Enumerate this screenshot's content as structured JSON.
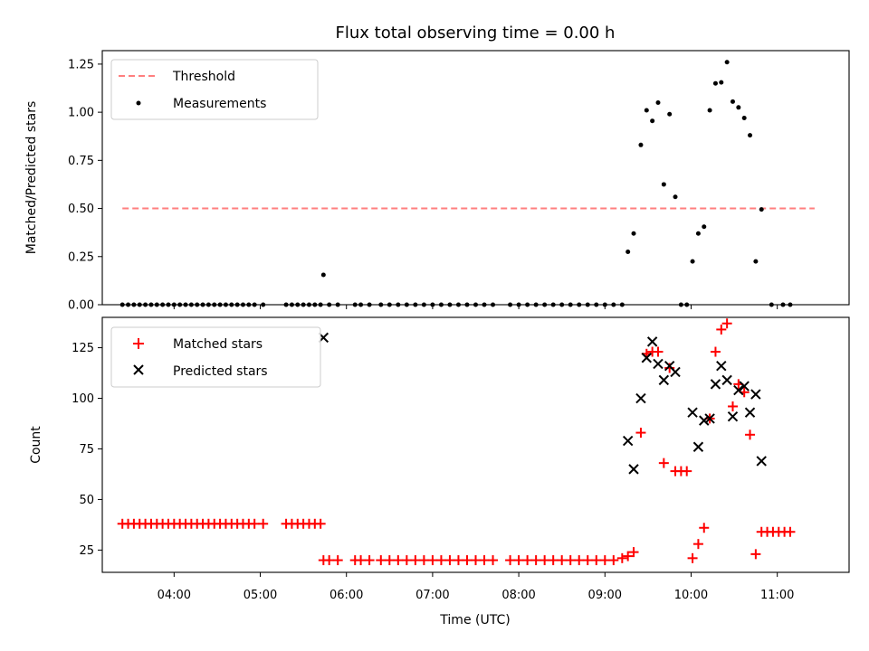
{
  "figure": {
    "title": "Flux total observing time = 0.00 h"
  },
  "chart_data": [
    {
      "type": "scatter",
      "xlabel": "",
      "ylabel": "Matched/Predicted stars",
      "xlim": [
        "03:10",
        "11:50"
      ],
      "ylim": [
        0,
        1.32
      ],
      "yticks": [
        0.0,
        0.25,
        0.5,
        0.75,
        1.0,
        1.25
      ],
      "ytick_labels": [
        "0.00",
        "0.25",
        "0.50",
        "0.75",
        "1.00",
        "1.25"
      ],
      "legend_position": "upper-left",
      "threshold": {
        "name": "Threshold",
        "value": 0.5,
        "x_range": [
          "03:24",
          "11:26"
        ],
        "color": "#ff7f7f",
        "style": "dashed"
      },
      "series": [
        {
          "name": "Measurements",
          "color": "#000000",
          "marker": "dot",
          "points": [
            [
              "03:24",
              0
            ],
            [
              "03:28",
              0
            ],
            [
              "03:32",
              0
            ],
            [
              "03:36",
              0
            ],
            [
              "03:40",
              0
            ],
            [
              "03:44",
              0
            ],
            [
              "03:48",
              0
            ],
            [
              "03:52",
              0
            ],
            [
              "03:56",
              0
            ],
            [
              "04:00",
              0
            ],
            [
              "04:04",
              0
            ],
            [
              "04:08",
              0
            ],
            [
              "04:12",
              0
            ],
            [
              "04:16",
              0
            ],
            [
              "04:20",
              0
            ],
            [
              "04:24",
              0
            ],
            [
              "04:28",
              0
            ],
            [
              "04:32",
              0
            ],
            [
              "04:36",
              0
            ],
            [
              "04:40",
              0
            ],
            [
              "04:44",
              0
            ],
            [
              "04:48",
              0
            ],
            [
              "04:52",
              0
            ],
            [
              "04:56",
              0
            ],
            [
              "05:02",
              0
            ],
            [
              "05:18",
              0
            ],
            [
              "05:22",
              0
            ],
            [
              "05:26",
              0
            ],
            [
              "05:30",
              0
            ],
            [
              "05:34",
              0
            ],
            [
              "05:38",
              0
            ],
            [
              "05:42",
              0
            ],
            [
              "05:44",
              0.155
            ],
            [
              "05:48",
              0
            ],
            [
              "05:54",
              0
            ],
            [
              "06:06",
              0
            ],
            [
              "06:10",
              0
            ],
            [
              "06:16",
              0
            ],
            [
              "06:24",
              0
            ],
            [
              "06:30",
              0
            ],
            [
              "06:36",
              0
            ],
            [
              "06:42",
              0
            ],
            [
              "06:48",
              0
            ],
            [
              "06:54",
              0
            ],
            [
              "07:00",
              0
            ],
            [
              "07:06",
              0
            ],
            [
              "07:12",
              0
            ],
            [
              "07:18",
              0
            ],
            [
              "07:24",
              0
            ],
            [
              "07:30",
              0
            ],
            [
              "07:36",
              0
            ],
            [
              "07:42",
              0
            ],
            [
              "07:54",
              0
            ],
            [
              "08:00",
              0
            ],
            [
              "08:06",
              0
            ],
            [
              "08:12",
              0
            ],
            [
              "08:18",
              0
            ],
            [
              "08:24",
              0
            ],
            [
              "08:30",
              0
            ],
            [
              "08:36",
              0
            ],
            [
              "08:42",
              0
            ],
            [
              "08:48",
              0
            ],
            [
              "08:54",
              0
            ],
            [
              "09:00",
              0
            ],
            [
              "09:06",
              0
            ],
            [
              "09:12",
              0
            ],
            [
              "09:16",
              0.275
            ],
            [
              "09:20",
              0.37
            ],
            [
              "09:25",
              0.83
            ],
            [
              "09:29",
              1.01
            ],
            [
              "09:33",
              0.955
            ],
            [
              "09:37",
              1.05
            ],
            [
              "09:41",
              0.625
            ],
            [
              "09:45",
              0.99
            ],
            [
              "09:49",
              0.56
            ],
            [
              "09:53",
              0
            ],
            [
              "09:57",
              0
            ],
            [
              "10:01",
              0.225
            ],
            [
              "10:05",
              0.37
            ],
            [
              "10:09",
              0.405
            ],
            [
              "10:13",
              1.01
            ],
            [
              "10:17",
              1.15
            ],
            [
              "10:21",
              1.155
            ],
            [
              "10:25",
              1.26
            ],
            [
              "10:29",
              1.055
            ],
            [
              "10:33",
              1.025
            ],
            [
              "10:37",
              0.97
            ],
            [
              "10:41",
              0.88
            ],
            [
              "10:45",
              0.225
            ],
            [
              "10:49",
              0.495
            ],
            [
              "10:56",
              0
            ],
            [
              "11:04",
              0
            ],
            [
              "11:09",
              0
            ]
          ]
        }
      ]
    },
    {
      "type": "scatter",
      "xlabel": "Time (UTC)",
      "ylabel": "Count",
      "xlim": [
        "03:10",
        "11:50"
      ],
      "ylim": [
        14,
        140
      ],
      "yticks": [
        25,
        50,
        75,
        100,
        125
      ],
      "ytick_labels": [
        "25",
        "50",
        "75",
        "100",
        "125"
      ],
      "xticks": [
        "04:00",
        "05:00",
        "06:00",
        "07:00",
        "08:00",
        "09:00",
        "10:00",
        "11:00"
      ],
      "xtick_labels": [
        "04:00",
        "05:00",
        "06:00",
        "07:00",
        "08:00",
        "09:00",
        "10:00",
        "11:00"
      ],
      "legend_position": "upper-left",
      "series": [
        {
          "name": "Matched stars",
          "color": "#ff0000",
          "marker": "plus",
          "points": [
            [
              "03:24",
              38
            ],
            [
              "03:28",
              38
            ],
            [
              "03:32",
              38
            ],
            [
              "03:36",
              38
            ],
            [
              "03:40",
              38
            ],
            [
              "03:44",
              38
            ],
            [
              "03:48",
              38
            ],
            [
              "03:52",
              38
            ],
            [
              "03:56",
              38
            ],
            [
              "04:00",
              38
            ],
            [
              "04:04",
              38
            ],
            [
              "04:08",
              38
            ],
            [
              "04:12",
              38
            ],
            [
              "04:16",
              38
            ],
            [
              "04:20",
              38
            ],
            [
              "04:24",
              38
            ],
            [
              "04:28",
              38
            ],
            [
              "04:32",
              38
            ],
            [
              "04:36",
              38
            ],
            [
              "04:40",
              38
            ],
            [
              "04:44",
              38
            ],
            [
              "04:48",
              38
            ],
            [
              "04:52",
              38
            ],
            [
              "04:56",
              38
            ],
            [
              "05:02",
              38
            ],
            [
              "05:18",
              38
            ],
            [
              "05:22",
              38
            ],
            [
              "05:26",
              38
            ],
            [
              "05:30",
              38
            ],
            [
              "05:34",
              38
            ],
            [
              "05:38",
              38
            ],
            [
              "05:42",
              38
            ],
            [
              "05:44",
              20
            ],
            [
              "05:48",
              20
            ],
            [
              "05:54",
              20
            ],
            [
              "06:06",
              20
            ],
            [
              "06:10",
              20
            ],
            [
              "06:16",
              20
            ],
            [
              "06:24",
              20
            ],
            [
              "06:30",
              20
            ],
            [
              "06:36",
              20
            ],
            [
              "06:42",
              20
            ],
            [
              "06:48",
              20
            ],
            [
              "06:54",
              20
            ],
            [
              "07:00",
              20
            ],
            [
              "07:06",
              20
            ],
            [
              "07:12",
              20
            ],
            [
              "07:18",
              20
            ],
            [
              "07:24",
              20
            ],
            [
              "07:30",
              20
            ],
            [
              "07:36",
              20
            ],
            [
              "07:42",
              20
            ],
            [
              "07:54",
              20
            ],
            [
              "08:00",
              20
            ],
            [
              "08:06",
              20
            ],
            [
              "08:12",
              20
            ],
            [
              "08:18",
              20
            ],
            [
              "08:24",
              20
            ],
            [
              "08:30",
              20
            ],
            [
              "08:36",
              20
            ],
            [
              "08:42",
              20
            ],
            [
              "08:48",
              20
            ],
            [
              "08:54",
              20
            ],
            [
              "09:00",
              20
            ],
            [
              "09:06",
              20
            ],
            [
              "09:12",
              21
            ],
            [
              "09:16",
              22
            ],
            [
              "09:20",
              24
            ],
            [
              "09:25",
              83
            ],
            [
              "09:29",
              122
            ],
            [
              "09:33",
              123
            ],
            [
              "09:37",
              123
            ],
            [
              "09:41",
              68
            ],
            [
              "09:45",
              115
            ],
            [
              "09:49",
              64
            ],
            [
              "09:53",
              64
            ],
            [
              "09:57",
              64
            ],
            [
              "10:01",
              21
            ],
            [
              "10:05",
              28
            ],
            [
              "10:09",
              36
            ],
            [
              "10:13",
              90
            ],
            [
              "10:17",
              123
            ],
            [
              "10:21",
              134
            ],
            [
              "10:25",
              137
            ],
            [
              "10:29",
              96
            ],
            [
              "10:33",
              107
            ],
            [
              "10:37",
              103
            ],
            [
              "10:41",
              82
            ],
            [
              "10:45",
              23
            ],
            [
              "10:49",
              34
            ],
            [
              "10:53",
              34
            ],
            [
              "10:57",
              34
            ],
            [
              "11:01",
              34
            ],
            [
              "11:05",
              34
            ],
            [
              "11:09",
              34
            ]
          ]
        },
        {
          "name": "Predicted stars",
          "color": "#000000",
          "marker": "x",
          "points": [
            [
              "05:44",
              130
            ],
            [
              "09:16",
              79
            ],
            [
              "09:20",
              65
            ],
            [
              "09:25",
              100
            ],
            [
              "09:29",
              120
            ],
            [
              "09:33",
              128
            ],
            [
              "09:37",
              117
            ],
            [
              "09:41",
              109
            ],
            [
              "09:45",
              116
            ],
            [
              "09:49",
              113
            ],
            [
              "10:01",
              93
            ],
            [
              "10:05",
              76
            ],
            [
              "10:09",
              89
            ],
            [
              "10:13",
              90
            ],
            [
              "10:17",
              107
            ],
            [
              "10:21",
              116
            ],
            [
              "10:25",
              109
            ],
            [
              "10:29",
              91
            ],
            [
              "10:33",
              104
            ],
            [
              "10:37",
              106
            ],
            [
              "10:41",
              93
            ],
            [
              "10:45",
              102
            ],
            [
              "10:49",
              69
            ]
          ]
        }
      ]
    }
  ]
}
